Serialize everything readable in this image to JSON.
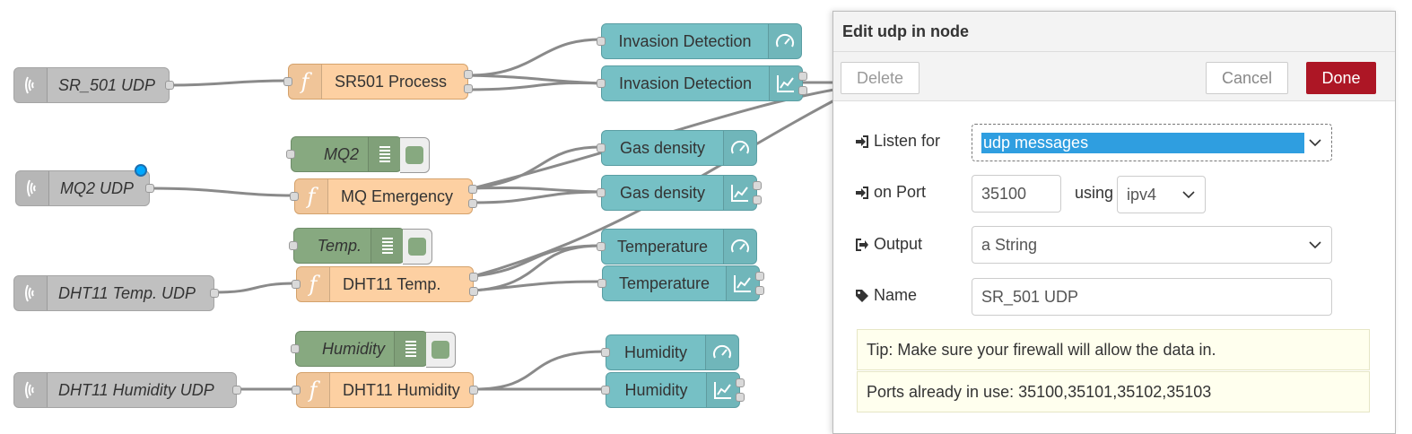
{
  "flow": {
    "udp_nodes": [
      "SR_501 UDP",
      "MQ2 UDP",
      "DHT11 Temp. UDP",
      "DHT11 Humidity UDP"
    ],
    "function_nodes": [
      "SR501 Process",
      "MQ Emergency",
      "DHT11 Temp.",
      "DHT11 Humidity"
    ],
    "debug_nodes": [
      "MQ2",
      "Temp.",
      "Humidity"
    ],
    "ui_nodes": {
      "invasion_gauge": "Invasion Detection",
      "invasion_chart": "Invasion Detection",
      "gas_gauge": "Gas density",
      "gas_chart": "Gas density",
      "temp_gauge": "Temperature",
      "temp_chart": "Temperature",
      "hum_gauge": "Humidity",
      "hum_chart": "Humidity"
    }
  },
  "tray": {
    "title": "Edit udp in node",
    "delete_label": "Delete",
    "cancel_label": "Cancel",
    "done_label": "Done",
    "listen_label": "Listen for",
    "listen_value": "udp messages",
    "port_label": "on Port",
    "port_value": "35100",
    "using_label": "using",
    "ip_value": "ipv4",
    "output_label": "Output",
    "output_value": "a String",
    "name_label": "Name",
    "name_value": "SR_501 UDP",
    "tip_text": "Tip: Make sure your firewall will allow the data in.",
    "ports_text": "Ports already in use: 35100,35101,35102,35103"
  },
  "colors": {
    "udp": "#c0c0c0",
    "function": "#fdd0a2",
    "debug": "#87a980",
    "dashboard": "#76c0c5",
    "done": "#ad1625",
    "selected_port": "#00a8ff"
  }
}
